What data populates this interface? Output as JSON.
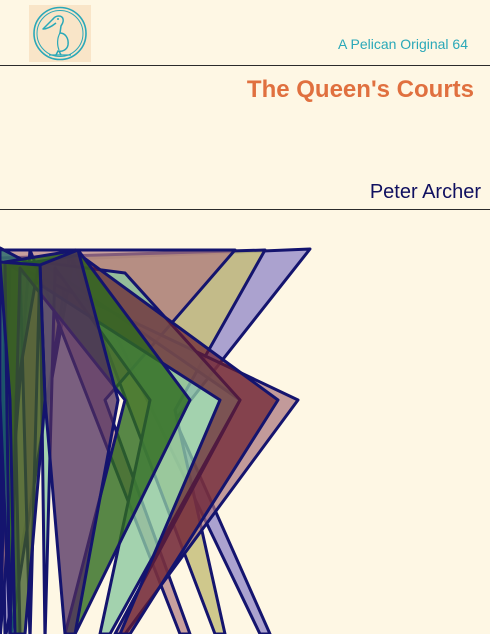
{
  "cover": {
    "series_line": "A Pelican Original 64",
    "title": "The Queen's Courts",
    "author": "Peter Archer",
    "logo_icon": "pelican-icon"
  },
  "colors": {
    "background": "#fef7e4",
    "title": "#e0703f",
    "series": "#2aa8b8",
    "author": "#101060",
    "logo_background": "#f9e5c8",
    "logo_stroke": "#2aa8b8",
    "art_outline": "#14146e"
  },
  "art_shapes": [
    {
      "name": "art-shape-lavender",
      "fill": "#8f86c8",
      "opacity": 0.75
    },
    {
      "name": "art-shape-khaki",
      "fill": "#c7bf7c",
      "opacity": 0.85
    },
    {
      "name": "art-shape-rose",
      "fill": "#b07a80",
      "opacity": 0.7
    },
    {
      "name": "art-shape-mauve",
      "fill": "#a8727a",
      "opacity": 0.7
    },
    {
      "name": "art-shape-mint",
      "fill": "#8cc8a0",
      "opacity": 0.8
    },
    {
      "name": "art-shape-maroon",
      "fill": "#6a1c2c",
      "opacity": 0.7
    },
    {
      "name": "art-shape-teal",
      "fill": "#1e6a6a",
      "opacity": 0.75
    },
    {
      "name": "art-shape-green",
      "fill": "#2e6a1e",
      "opacity": 0.8
    },
    {
      "name": "art-shape-purple",
      "fill": "#4e2c5e",
      "opacity": 0.75
    },
    {
      "name": "art-shape-olive",
      "fill": "#3c5a24",
      "opacity": 0.75
    }
  ]
}
